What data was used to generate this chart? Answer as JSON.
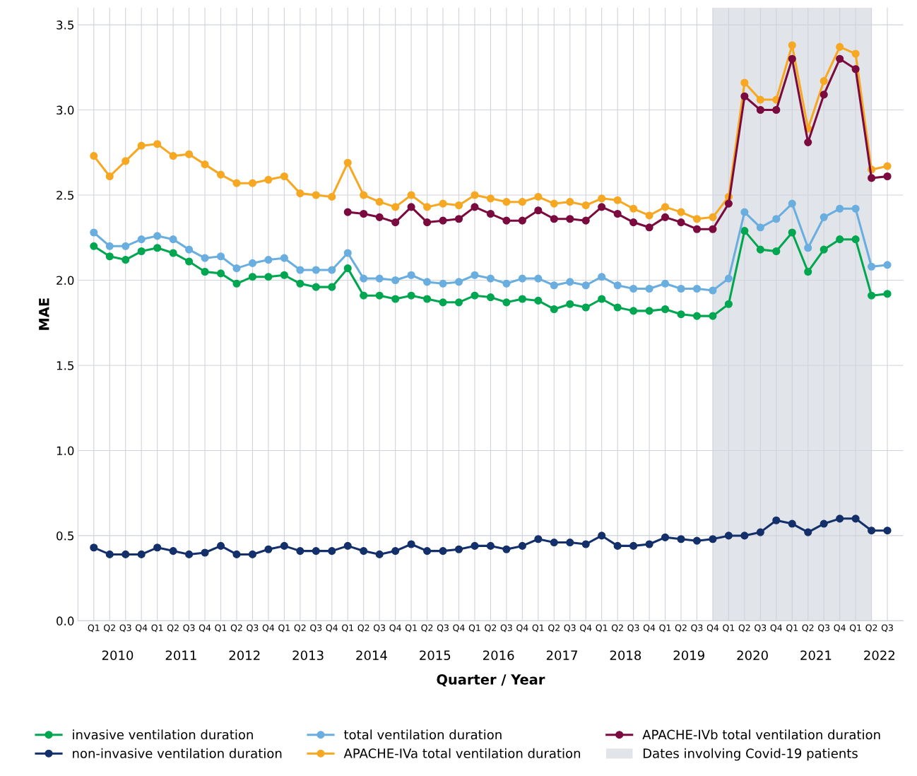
{
  "chart_data": {
    "type": "line",
    "xlabel": "Quarter / Year",
    "ylabel": "MAE",
    "categories": [
      "Q1",
      "Q2",
      "Q3",
      "Q4",
      "Q1",
      "Q2",
      "Q3",
      "Q4",
      "Q1",
      "Q2",
      "Q3",
      "Q4",
      "Q1",
      "Q2",
      "Q3",
      "Q4",
      "Q1",
      "Q2",
      "Q3",
      "Q4",
      "Q1",
      "Q2",
      "Q3",
      "Q4",
      "Q1",
      "Q2",
      "Q3",
      "Q4",
      "Q1",
      "Q2",
      "Q3",
      "Q4",
      "Q1",
      "Q2",
      "Q3",
      "Q4",
      "Q1",
      "Q2",
      "Q3",
      "Q4",
      "Q1",
      "Q2",
      "Q3",
      "Q4",
      "Q1",
      "Q2",
      "Q3",
      "Q4",
      "Q1",
      "Q2",
      "Q3"
    ],
    "annotations": [
      "2010",
      "2011",
      "2012",
      "2013",
      "2014",
      "2015",
      "2016",
      "2017",
      "2018",
      "2019",
      "2020",
      "2021",
      "2022",
      "Dates involving Covid-19 patients"
    ],
    "series": [
      {
        "name": "invasive ventilation duration",
        "color": "#00a650",
        "values": [
          2.2,
          2.14,
          2.12,
          2.17,
          2.19,
          2.16,
          2.11,
          2.05,
          2.04,
          1.98,
          2.02,
          2.02,
          2.03,
          1.98,
          1.96,
          1.96,
          2.07,
          1.91,
          1.91,
          1.89,
          1.91,
          1.89,
          1.87,
          1.87,
          1.91,
          1.9,
          1.87,
          1.89,
          1.88,
          1.83,
          1.86,
          1.84,
          1.89,
          1.84,
          1.82,
          1.82,
          1.83,
          1.8,
          1.79,
          1.79,
          1.86,
          2.29,
          2.18,
          2.17,
          2.28,
          2.05,
          2.18,
          2.24,
          2.24,
          1.91,
          1.92
        ]
      },
      {
        "name": "non-invasive ventilation duration",
        "color": "#14306b",
        "values": [
          0.43,
          0.39,
          0.39,
          0.39,
          0.43,
          0.41,
          0.39,
          0.4,
          0.44,
          0.39,
          0.39,
          0.42,
          0.44,
          0.41,
          0.41,
          0.41,
          0.44,
          0.41,
          0.39,
          0.41,
          0.45,
          0.41,
          0.41,
          0.42,
          0.44,
          0.44,
          0.42,
          0.44,
          0.48,
          0.46,
          0.46,
          0.45,
          0.5,
          0.44,
          0.44,
          0.45,
          0.49,
          0.48,
          0.47,
          0.48,
          0.5,
          0.5,
          0.52,
          0.59,
          0.57,
          0.52,
          0.57,
          0.6,
          0.6,
          0.53,
          0.53
        ]
      },
      {
        "name": "total ventilation duration",
        "color": "#6aaee0",
        "values": [
          2.28,
          2.2,
          2.2,
          2.24,
          2.26,
          2.24,
          2.18,
          2.13,
          2.14,
          2.07,
          2.1,
          2.12,
          2.13,
          2.06,
          2.06,
          2.06,
          2.16,
          2.01,
          2.01,
          2.0,
          2.03,
          1.99,
          1.98,
          1.99,
          2.03,
          2.01,
          1.98,
          2.01,
          2.01,
          1.97,
          1.99,
          1.97,
          2.02,
          1.97,
          1.95,
          1.95,
          1.98,
          1.95,
          1.95,
          1.94,
          2.01,
          2.4,
          2.31,
          2.36,
          2.45,
          2.19,
          2.37,
          2.42,
          2.42,
          2.08,
          2.09
        ]
      },
      {
        "name": "APACHE-IVa total ventilation duration",
        "color": "#f7a823",
        "values": [
          2.73,
          2.61,
          2.7,
          2.79,
          2.8,
          2.73,
          2.74,
          2.68,
          2.62,
          2.57,
          2.57,
          2.59,
          2.61,
          2.51,
          2.5,
          2.49,
          2.69,
          2.5,
          2.46,
          2.43,
          2.5,
          2.43,
          2.45,
          2.44,
          2.5,
          2.48,
          2.46,
          2.46,
          2.49,
          2.45,
          2.46,
          2.44,
          2.48,
          2.47,
          2.42,
          2.38,
          2.43,
          2.4,
          2.36,
          2.37,
          2.49,
          3.16,
          3.06,
          3.06,
          3.38,
          2.89,
          3.17,
          3.37,
          3.33,
          2.65,
          2.67
        ]
      },
      {
        "name": "APACHE-IVb total ventilation duration",
        "color": "#7b0a3f",
        "values": [
          null,
          null,
          null,
          null,
          null,
          null,
          null,
          null,
          null,
          null,
          null,
          null,
          null,
          null,
          null,
          null,
          2.4,
          2.39,
          2.37,
          2.34,
          2.43,
          2.34,
          2.35,
          2.36,
          2.43,
          2.39,
          2.35,
          2.35,
          2.41,
          2.36,
          2.36,
          2.35,
          2.43,
          2.39,
          2.34,
          2.31,
          2.37,
          2.34,
          2.3,
          2.3,
          2.45,
          3.08,
          3.0,
          3.0,
          3.3,
          2.81,
          3.09,
          3.3,
          3.24,
          2.6,
          2.61
        ]
      }
    ],
    "ylim": [
      0,
      3.6
    ],
    "yticks": [
      {
        "value": 0,
        "label": "0.0"
      },
      {
        "value": 0.5,
        "label": "0.5"
      },
      {
        "value": 1,
        "label": "1.0"
      },
      {
        "value": 1.5,
        "label": "1.5"
      },
      {
        "value": 2,
        "label": "2.0"
      },
      {
        "value": 2.5,
        "label": "2.5"
      },
      {
        "value": 3,
        "label": "3.0"
      },
      {
        "value": 3.5,
        "label": "3.5"
      }
    ],
    "grid": true,
    "legend": "bottom",
    "marker": "circle",
    "line_style": "solid"
  }
}
